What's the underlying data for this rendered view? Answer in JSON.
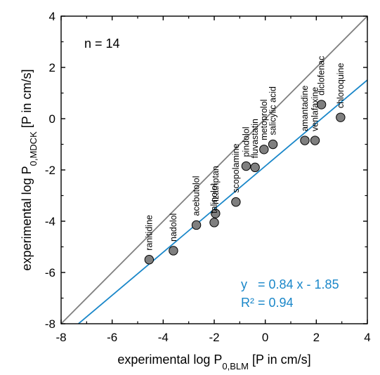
{
  "chart_data": {
    "type": "scatter",
    "annotation_n": "n = 14",
    "xlabel": {
      "main": "experimental log P",
      "sub": "0,BLM",
      "tail": " [P in cm/s]"
    },
    "ylabel": {
      "main": "experimental log P",
      "sub": "0,MDCK",
      "tail": " [P in cm/s]"
    },
    "xlim": [
      -8,
      4
    ],
    "ylim": [
      -8,
      4
    ],
    "x_ticks": [
      -8,
      -6,
      -4,
      -2,
      0,
      2,
      4
    ],
    "y_ticks": [
      -8,
      -6,
      -4,
      -2,
      0,
      2,
      4
    ],
    "points": [
      {
        "name": "ranitidine",
        "x": -4.55,
        "y": -5.5
      },
      {
        "name": "nadolol",
        "x": -3.6,
        "y": -5.15
      },
      {
        "name": "acebutolol",
        "x": -2.7,
        "y": -4.15
      },
      {
        "name": "talinolol",
        "x": -2.0,
        "y": -4.05
      },
      {
        "name": "rizatriptan",
        "x": -1.95,
        "y": -3.7
      },
      {
        "name": "scopolamine",
        "x": -1.15,
        "y": -3.25
      },
      {
        "name": "pindolol",
        "x": -0.75,
        "y": -1.85
      },
      {
        "name": "fluvastatin",
        "x": -0.4,
        "y": -1.9
      },
      {
        "name": "metoprolol",
        "x": -0.05,
        "y": -1.2
      },
      {
        "name": "salicylic acid",
        "x": 0.3,
        "y": -1.0
      },
      {
        "name": "amantadine",
        "x": 1.55,
        "y": -0.85
      },
      {
        "name": "venlafaxine",
        "x": 1.95,
        "y": -0.85
      },
      {
        "name": "diclofenac",
        "x": 2.2,
        "y": 0.55
      },
      {
        "name": "chloroquine",
        "x": 2.95,
        "y": 0.05
      }
    ],
    "identity_line": {
      "slope": 1,
      "intercept": 0,
      "color": "#808080"
    },
    "regression": {
      "slope": 0.84,
      "intercept": -1.85,
      "color": "#1a87c9",
      "equation_text": "y   = 0.84 x - 1.85",
      "r2_text": "R² = 0.94"
    },
    "marker": {
      "fill": "#7f7f7f",
      "stroke": "#000000"
    },
    "grid": false
  }
}
